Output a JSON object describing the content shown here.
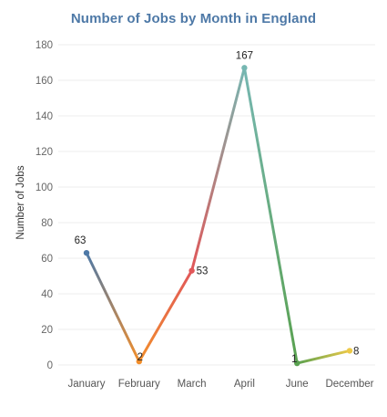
{
  "chart_data": {
    "type": "line",
    "title": "Number of Jobs by Month in England",
    "xlabel": "",
    "ylabel": "Number of Jobs",
    "categories": [
      "January",
      "February",
      "March",
      "April",
      "June",
      "December"
    ],
    "series": [
      {
        "values": [
          63,
          2,
          53,
          167,
          1,
          8
        ],
        "colors": [
          "#4e79a7",
          "#f28e2b",
          "#e15759",
          "#76b7b2",
          "#59a14f",
          "#edc948"
        ]
      }
    ],
    "data_labels": [
      "63",
      "2",
      "53",
      "167",
      "1",
      "8"
    ],
    "y_ticks": [
      0,
      20,
      40,
      60,
      80,
      100,
      120,
      140,
      160,
      180
    ],
    "ylim": [
      0,
      180
    ],
    "grid": true,
    "legend": "none"
  }
}
